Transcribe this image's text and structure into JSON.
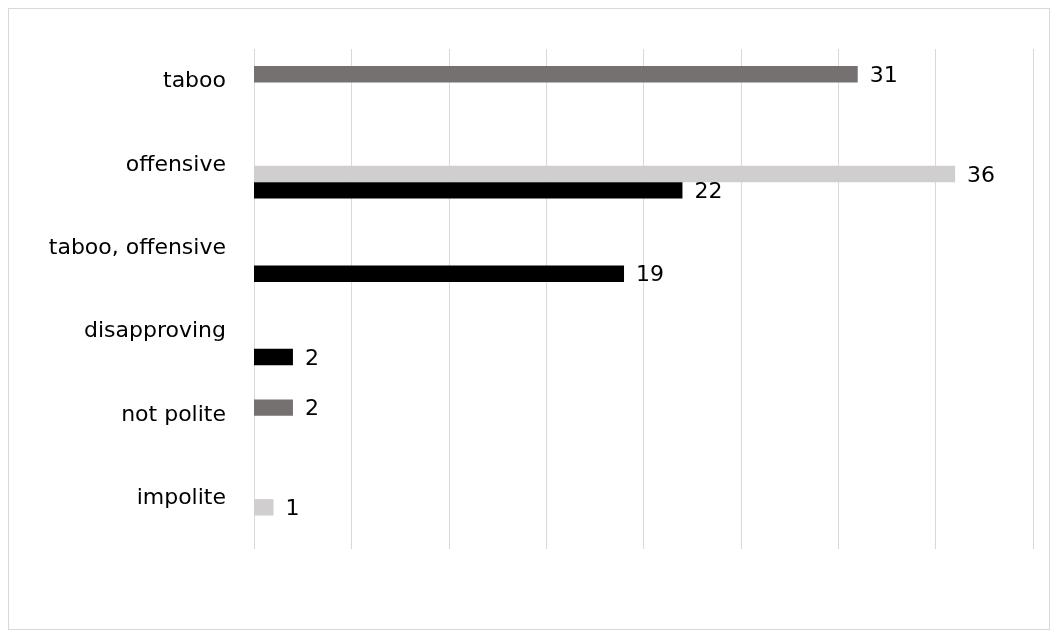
{
  "chart_data": {
    "type": "bar",
    "orientation": "horizontal",
    "categories": [
      "taboo",
      "offensive",
      "taboo, offensive",
      "disapproving",
      "not polite",
      "impolite"
    ],
    "series": [
      {
        "color": "#767171",
        "values": [
          31,
          null,
          null,
          null,
          2,
          null
        ]
      },
      {
        "color": "#d0cece",
        "values": [
          null,
          36,
          null,
          null,
          null,
          1
        ]
      },
      {
        "color": "#000000",
        "values": [
          null,
          22,
          19,
          2,
          null,
          null
        ]
      }
    ],
    "xlim": [
      0,
      40
    ],
    "xticks": [
      {
        "value": 0,
        "label": null
      },
      {
        "value": 5,
        "label": null
      },
      {
        "value": 10,
        "label": null
      },
      {
        "value": 15,
        "label": null
      },
      {
        "value": 20,
        "label": null
      },
      {
        "value": 25,
        "label": null
      },
      {
        "value": 30,
        "label": null
      },
      {
        "value": 35,
        "label": null
      },
      {
        "value": 40,
        "label": null
      }
    ],
    "grid": "x",
    "tick_labels": "y",
    "data_labels": true
  }
}
